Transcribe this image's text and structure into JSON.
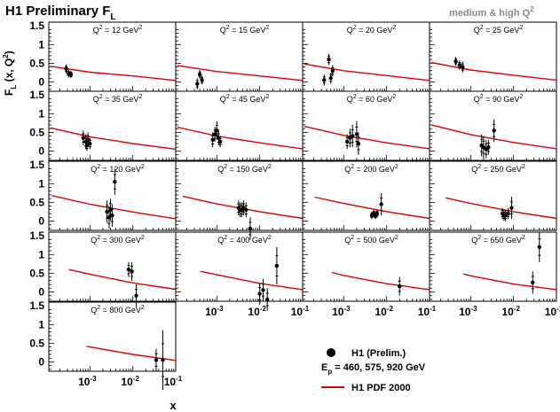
{
  "header": {
    "title_main": "H1 Preliminary F",
    "title_sub": "L",
    "corner_label": "medium & high Q",
    "corner_sup": "2"
  },
  "axes": {
    "y_label_main": "F",
    "y_label_sub": "L",
    "y_label_args": " (x, Q",
    "y_label_sup": "2",
    "y_label_close": ")",
    "x_label": "x",
    "y_ticks": [
      "1.5",
      "1",
      "0.5",
      "0"
    ],
    "x_ticks_base": "10",
    "x_ticks_exp": [
      "-3",
      "-2",
      "-1"
    ]
  },
  "legend": {
    "data_label": "H1 (Prelim.)",
    "energy_prefix": "E",
    "energy_sub": "p",
    "energy_value": " = 460, 575, 920 GeV",
    "pdf_label": "H1 PDF 2000",
    "curve_color": "#dd0000"
  },
  "chart_data": {
    "type": "scatter",
    "xlabel": "x",
    "ylabel": "F_L (x, Q^2)",
    "x_scale": "log",
    "xlim": [
      0.00011,
      0.1
    ],
    "ylim": [
      -0.25,
      1.6
    ],
    "series_names": [
      "H1 (Prelim.)",
      "H1 PDF 2000"
    ],
    "panels": [
      {
        "q2_label": "Q",
        "q2_value": "2",
        "q2_text": " = 12 GeV",
        "q2_unit_sup": "2",
        "q2": 12,
        "points": [
          {
            "x": 0.00028,
            "y": 0.35,
            "err": 0.12
          },
          {
            "x": 0.00032,
            "y": 0.22,
            "err": 0.1
          },
          {
            "x": 0.00036,
            "y": 0.2,
            "err": 0.1
          }
        ],
        "curve": [
          {
            "x": 0.00012,
            "y": 0.42
          },
          {
            "x": 0.001,
            "y": 0.26
          },
          {
            "x": 0.01,
            "y": 0.16
          },
          {
            "x": 0.1,
            "y": 0.04
          }
        ]
      },
      {
        "q2_label": "Q",
        "q2_value": "2",
        "q2_text": " = 15 GeV",
        "q2_unit_sup": "2",
        "q2": 15,
        "points": [
          {
            "x": 0.00035,
            "y": -0.05,
            "err": 0.15
          },
          {
            "x": 0.0004,
            "y": 0.2,
            "err": 0.12
          },
          {
            "x": 0.00045,
            "y": 0.05,
            "err": 0.12
          }
        ],
        "curve": [
          {
            "x": 0.00012,
            "y": 0.44
          },
          {
            "x": 0.001,
            "y": 0.28
          },
          {
            "x": 0.01,
            "y": 0.16
          },
          {
            "x": 0.1,
            "y": 0.04
          }
        ]
      },
      {
        "q2_label": "Q",
        "q2_value": "2",
        "q2_text": " = 20 GeV",
        "q2_unit_sup": "2",
        "q2": 20,
        "points": [
          {
            "x": 0.00035,
            "y": 0.05,
            "err": 0.15
          },
          {
            "x": 0.00045,
            "y": 0.6,
            "err": 0.15
          },
          {
            "x": 0.0005,
            "y": 0.1,
            "err": 0.15
          },
          {
            "x": 0.00055,
            "y": 0.3,
            "err": 0.15
          }
        ],
        "curve": [
          {
            "x": 0.00012,
            "y": 0.48
          },
          {
            "x": 0.001,
            "y": 0.3
          },
          {
            "x": 0.01,
            "y": 0.17
          },
          {
            "x": 0.1,
            "y": 0.04
          }
        ]
      },
      {
        "q2_label": "Q",
        "q2_value": "2",
        "q2_text": " = 25 GeV",
        "q2_unit_sup": "2",
        "q2": 25,
        "points": [
          {
            "x": 0.00045,
            "y": 0.55,
            "err": 0.12
          },
          {
            "x": 0.00055,
            "y": 0.45,
            "err": 0.12
          },
          {
            "x": 0.00065,
            "y": 0.4,
            "err": 0.15
          }
        ],
        "curve": [
          {
            "x": 0.00012,
            "y": 0.52
          },
          {
            "x": 0.001,
            "y": 0.32
          },
          {
            "x": 0.01,
            "y": 0.18
          },
          {
            "x": 0.1,
            "y": 0.05
          }
        ]
      },
      {
        "q2_label": "Q",
        "q2_value": "2",
        "q2_text": " = 35 GeV",
        "q2_unit_sup": "2",
        "q2": 35,
        "points": [
          {
            "x": 0.0007,
            "y": 0.35,
            "err": 0.2
          },
          {
            "x": 0.0008,
            "y": 0.25,
            "err": 0.2
          },
          {
            "x": 0.00085,
            "y": 0.15,
            "err": 0.15
          },
          {
            "x": 0.0009,
            "y": 0.3,
            "err": 0.2
          },
          {
            "x": 0.001,
            "y": 0.2,
            "err": 0.15
          }
        ],
        "curve": [
          {
            "x": 0.00012,
            "y": 0.62
          },
          {
            "x": 0.001,
            "y": 0.38
          },
          {
            "x": 0.01,
            "y": 0.2
          },
          {
            "x": 0.1,
            "y": 0.05
          }
        ]
      },
      {
        "q2_label": "Q",
        "q2_value": "2",
        "q2_text": " = 45 GeV",
        "q2_unit_sup": "2",
        "q2": 45,
        "points": [
          {
            "x": 0.0008,
            "y": 0.3,
            "err": 0.2
          },
          {
            "x": 0.0009,
            "y": 0.45,
            "err": 0.2
          },
          {
            "x": 0.001,
            "y": 0.55,
            "err": 0.25
          },
          {
            "x": 0.0011,
            "y": 0.35,
            "err": 0.2
          },
          {
            "x": 0.0012,
            "y": 0.25,
            "err": 0.15
          }
        ],
        "curve": [
          {
            "x": 0.00012,
            "y": 0.64
          },
          {
            "x": 0.001,
            "y": 0.4
          },
          {
            "x": 0.01,
            "y": 0.22
          },
          {
            "x": 0.1,
            "y": 0.06
          }
        ]
      },
      {
        "q2_label": "Q",
        "q2_value": "2",
        "q2_text": " = 60 GeV",
        "q2_unit_sup": "2",
        "q2": 60,
        "points": [
          {
            "x": 0.0012,
            "y": 0.25,
            "err": 0.2
          },
          {
            "x": 0.0014,
            "y": 0.35,
            "err": 0.25
          },
          {
            "x": 0.0016,
            "y": 0.4,
            "err": 0.3
          },
          {
            "x": 0.002,
            "y": 0.45,
            "err": 0.35
          },
          {
            "x": 0.0022,
            "y": 0.2,
            "err": 0.3
          }
        ],
        "curve": [
          {
            "x": 0.00012,
            "y": 0.66
          },
          {
            "x": 0.001,
            "y": 0.42
          },
          {
            "x": 0.01,
            "y": 0.22
          },
          {
            "x": 0.1,
            "y": 0.06
          }
        ]
      },
      {
        "q2_label": "Q",
        "q2_value": "2",
        "q2_text": " = 90 GeV",
        "q2_unit_sup": "2",
        "q2": 90,
        "points": [
          {
            "x": 0.0018,
            "y": 0.15,
            "err": 0.3
          },
          {
            "x": 0.002,
            "y": 0.1,
            "err": 0.3
          },
          {
            "x": 0.0023,
            "y": 0.05,
            "err": 0.25
          },
          {
            "x": 0.0026,
            "y": 0.1,
            "err": 0.2
          },
          {
            "x": 0.0035,
            "y": 0.55,
            "err": 0.3
          }
        ],
        "curve": [
          {
            "x": 0.00012,
            "y": 0.7
          },
          {
            "x": 0.001,
            "y": 0.44
          },
          {
            "x": 0.01,
            "y": 0.23
          },
          {
            "x": 0.1,
            "y": 0.06
          }
        ]
      },
      {
        "q2_label": "Q",
        "q2_value": "2",
        "q2_text": " = 120 GeV",
        "q2_unit_sup": "2",
        "q2": 120,
        "points": [
          {
            "x": 0.0025,
            "y": 0.25,
            "err": 0.3
          },
          {
            "x": 0.0028,
            "y": 0.1,
            "err": 0.3
          },
          {
            "x": 0.003,
            "y": 0.3,
            "err": 0.3
          },
          {
            "x": 0.0033,
            "y": 0.15,
            "err": 0.3
          },
          {
            "x": 0.0038,
            "y": 1.05,
            "err": 0.35
          }
        ],
        "curve": [
          {
            "x": 0.00013,
            "y": 0.68
          },
          {
            "x": 0.001,
            "y": 0.45
          },
          {
            "x": 0.01,
            "y": 0.24
          },
          {
            "x": 0.1,
            "y": 0.06
          }
        ]
      },
      {
        "q2_label": "Q",
        "q2_value": "2",
        "q2_text": " = 150 GeV",
        "q2_unit_sup": "2",
        "q2": 150,
        "points": [
          {
            "x": 0.0032,
            "y": 0.35,
            "err": 0.2
          },
          {
            "x": 0.0035,
            "y": 0.3,
            "err": 0.2
          },
          {
            "x": 0.0038,
            "y": 0.3,
            "err": 0.2
          },
          {
            "x": 0.0042,
            "y": 0.35,
            "err": 0.2
          },
          {
            "x": 0.0048,
            "y": 0.3,
            "err": 0.2
          },
          {
            "x": 0.006,
            "y": -0.2,
            "err": 0.3
          }
        ],
        "curve": [
          {
            "x": 0.00016,
            "y": 0.66
          },
          {
            "x": 0.001,
            "y": 0.46
          },
          {
            "x": 0.01,
            "y": 0.25
          },
          {
            "x": 0.1,
            "y": 0.07
          }
        ]
      },
      {
        "q2_label": "Q",
        "q2_value": "2",
        "q2_text": " = 200 GeV",
        "q2_unit_sup": "2",
        "q2": 200,
        "points": [
          {
            "x": 0.0045,
            "y": 0.15,
            "err": 0.1
          },
          {
            "x": 0.005,
            "y": 0.2,
            "err": 0.1
          },
          {
            "x": 0.0055,
            "y": 0.15,
            "err": 0.1
          },
          {
            "x": 0.006,
            "y": 0.2,
            "err": 0.1
          },
          {
            "x": 0.0075,
            "y": 0.45,
            "err": 0.3
          }
        ],
        "curve": [
          {
            "x": 0.00021,
            "y": 0.64
          },
          {
            "x": 0.001,
            "y": 0.47
          },
          {
            "x": 0.01,
            "y": 0.25
          },
          {
            "x": 0.1,
            "y": 0.07
          }
        ]
      },
      {
        "q2_label": "Q",
        "q2_value": "2",
        "q2_text": " = 250 GeV",
        "q2_unit_sup": "2",
        "q2": 250,
        "points": [
          {
            "x": 0.0055,
            "y": 0.2,
            "err": 0.15
          },
          {
            "x": 0.006,
            "y": 0.15,
            "err": 0.15
          },
          {
            "x": 0.0065,
            "y": 0.15,
            "err": 0.15
          },
          {
            "x": 0.0075,
            "y": 0.2,
            "err": 0.15
          },
          {
            "x": 0.009,
            "y": 0.35,
            "err": 0.3
          }
        ],
        "curve": [
          {
            "x": 0.00026,
            "y": 0.62
          },
          {
            "x": 0.001,
            "y": 0.47
          },
          {
            "x": 0.01,
            "y": 0.25
          },
          {
            "x": 0.1,
            "y": 0.07
          }
        ]
      },
      {
        "q2_label": "Q",
        "q2_value": "2",
        "q2_text": " = 300 GeV",
        "q2_unit_sup": "2",
        "q2": 300,
        "points": [
          {
            "x": 0.008,
            "y": 0.6,
            "err": 0.2
          },
          {
            "x": 0.0095,
            "y": 0.55,
            "err": 0.25
          },
          {
            "x": 0.012,
            "y": -0.1,
            "err": 0.3
          }
        ],
        "curve": [
          {
            "x": 0.00032,
            "y": 0.6
          },
          {
            "x": 0.001,
            "y": 0.47
          },
          {
            "x": 0.01,
            "y": 0.24
          },
          {
            "x": 0.1,
            "y": 0.07
          }
        ]
      },
      {
        "q2_label": "Q",
        "q2_value": "2",
        "q2_text": " = 400 GeV",
        "q2_unit_sup": "2",
        "q2": 400,
        "points": [
          {
            "x": 0.01,
            "y": -0.05,
            "err": 0.3
          },
          {
            "x": 0.012,
            "y": 0.05,
            "err": 0.3
          },
          {
            "x": 0.015,
            "y": -0.2,
            "err": 0.3
          },
          {
            "x": 0.025,
            "y": 0.7,
            "err": 0.5
          }
        ],
        "curve": [
          {
            "x": 0.00042,
            "y": 0.55
          },
          {
            "x": 0.001,
            "y": 0.46
          },
          {
            "x": 0.01,
            "y": 0.23
          },
          {
            "x": 0.1,
            "y": 0.06
          }
        ]
      },
      {
        "q2_label": "Q",
        "q2_value": "2",
        "q2_text": " = 500 GeV",
        "q2_unit_sup": "2",
        "q2": 500,
        "points": [
          {
            "x": 0.02,
            "y": 0.15,
            "err": 0.25
          }
        ],
        "curve": [
          {
            "x": 0.00053,
            "y": 0.52
          },
          {
            "x": 0.001,
            "y": 0.44
          },
          {
            "x": 0.01,
            "y": 0.22
          },
          {
            "x": 0.1,
            "y": 0.06
          }
        ]
      },
      {
        "q2_label": "Q",
        "q2_value": "2",
        "q2_text": " = 650 GeV",
        "q2_unit_sup": "2",
        "q2": 650,
        "points": [
          {
            "x": 0.028,
            "y": 0.25,
            "err": 0.3
          },
          {
            "x": 0.04,
            "y": 1.2,
            "err": 0.4
          }
        ],
        "curve": [
          {
            "x": 0.00068,
            "y": 0.48
          },
          {
            "x": 0.001,
            "y": 0.43
          },
          {
            "x": 0.01,
            "y": 0.21
          },
          {
            "x": 0.1,
            "y": 0.06
          }
        ]
      },
      {
        "q2_label": "Q",
        "q2_value": "2",
        "q2_text": " = 800 GeV",
        "q2_unit_sup": "2",
        "q2": 800,
        "points": [
          {
            "x": 0.035,
            "y": 0.05,
            "err": 0.3
          },
          {
            "x": 0.05,
            "y": 0.05,
            "err": 0.8
          }
        ],
        "curve": [
          {
            "x": 0.00084,
            "y": 0.42
          },
          {
            "x": 0.001,
            "y": 0.4
          },
          {
            "x": 0.01,
            "y": 0.2
          },
          {
            "x": 0.1,
            "y": 0.04
          }
        ]
      }
    ]
  }
}
